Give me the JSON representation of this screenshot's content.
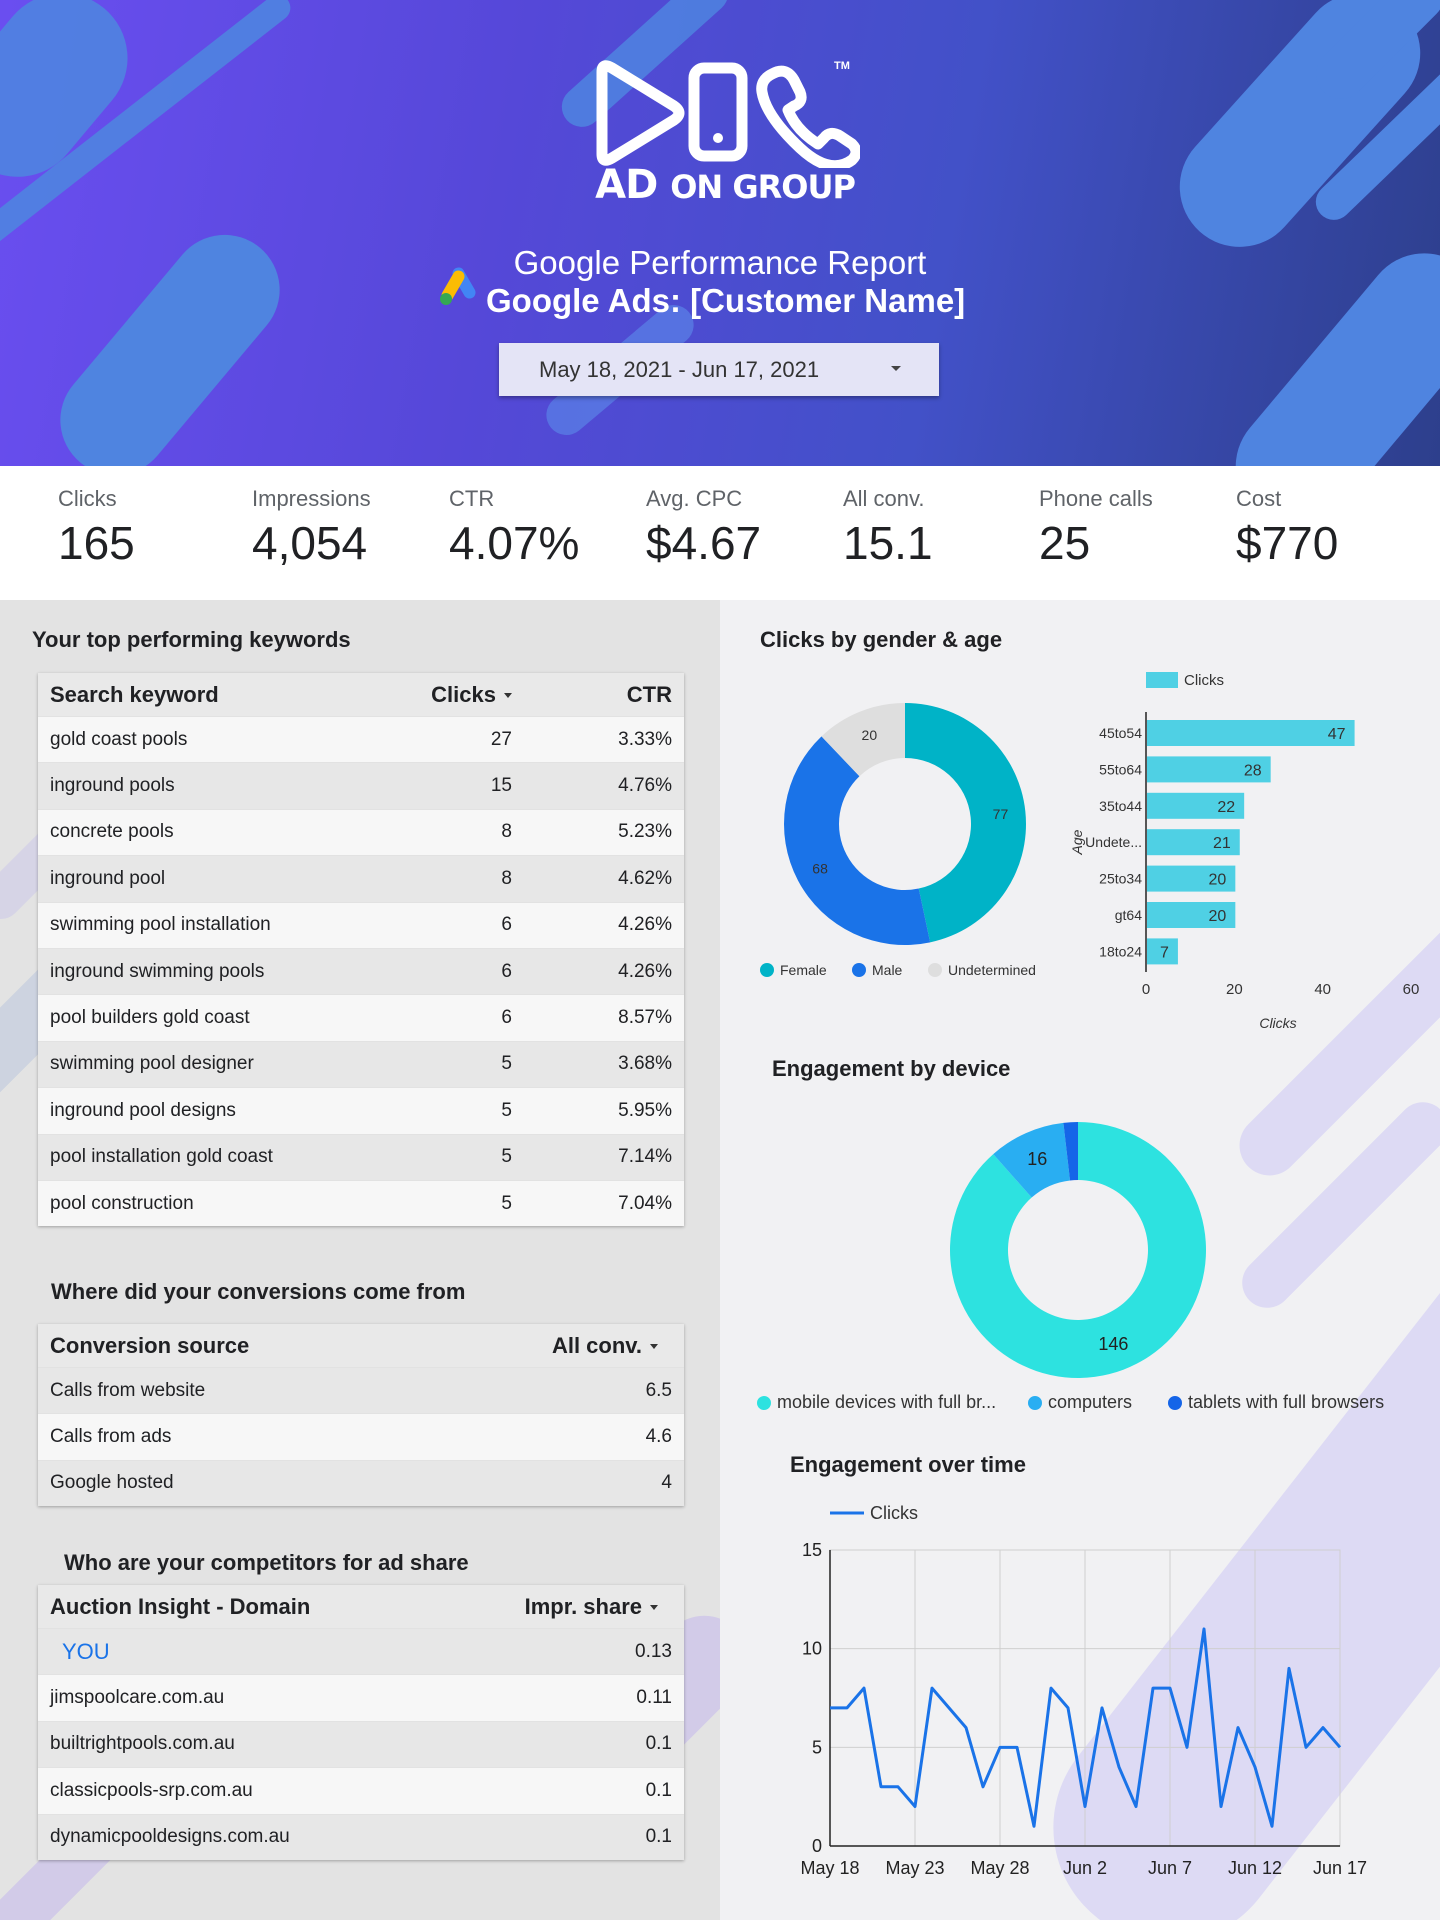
{
  "header": {
    "logo_text_main": "AD",
    "logo_text_small": "ON GROUP",
    "trademark": "TM",
    "report_title": "Google Performance Report",
    "report_subtitle": "Google Ads: [Customer Name]",
    "date_range": "May 18, 2021 - Jun 17, 2021",
    "colors": {
      "gradient_start": "#6a4ef0",
      "gradient_end": "#2d3f8c",
      "pill": "#4f84e0"
    }
  },
  "kpis": [
    {
      "label": "Clicks",
      "value": "165"
    },
    {
      "label": "Impressions",
      "value": "4,054"
    },
    {
      "label": "CTR",
      "value": "4.07%"
    },
    {
      "label": "Avg. CPC",
      "value": "$4.67"
    },
    {
      "label": "All conv.",
      "value": "15.1"
    },
    {
      "label": "Phone calls",
      "value": "25"
    },
    {
      "label": "Cost",
      "value": "$770"
    }
  ],
  "keywords": {
    "title": "Your top performing keywords",
    "headers": {
      "keyword": "Search keyword",
      "clicks": "Clicks",
      "ctr": "CTR"
    },
    "rows": [
      {
        "keyword": "gold coast pools",
        "clicks": "27",
        "ctr": "3.33%"
      },
      {
        "keyword": "inground pools",
        "clicks": "15",
        "ctr": "4.76%"
      },
      {
        "keyword": "concrete pools",
        "clicks": "8",
        "ctr": "5.23%"
      },
      {
        "keyword": "inground pool",
        "clicks": "8",
        "ctr": "4.62%"
      },
      {
        "keyword": "swimming pool installation",
        "clicks": "6",
        "ctr": "4.26%"
      },
      {
        "keyword": "inground swimming pools",
        "clicks": "6",
        "ctr": "4.26%"
      },
      {
        "keyword": "pool builders gold coast",
        "clicks": "6",
        "ctr": "8.57%"
      },
      {
        "keyword": "swimming pool designer",
        "clicks": "5",
        "ctr": "3.68%"
      },
      {
        "keyword": "inground pool designs",
        "clicks": "5",
        "ctr": "5.95%"
      },
      {
        "keyword": "pool installation gold coast",
        "clicks": "5",
        "ctr": "7.14%"
      },
      {
        "keyword": "pool construction",
        "clicks": "5",
        "ctr": "7.04%"
      }
    ]
  },
  "conversions": {
    "title": "Where did your conversions come from",
    "headers": {
      "source": "Conversion source",
      "value": "All conv."
    },
    "rows": [
      {
        "source": "Calls from website",
        "value": "6.5"
      },
      {
        "source": "Calls from ads",
        "value": "4.6"
      },
      {
        "source": "Google hosted",
        "value": "4"
      }
    ]
  },
  "competitors": {
    "title": "Who are your competitors for ad share",
    "headers": {
      "domain": "Auction Insight - Domain",
      "share": "Impr. share"
    },
    "rows": [
      {
        "domain": "YOU",
        "share": "0.13"
      },
      {
        "domain": "jimspoolcare.com.au",
        "share": "0.11"
      },
      {
        "domain": "builtrightpools.com.au",
        "share": "0.1"
      },
      {
        "domain": "classicpools-srp.com.au",
        "share": "0.1"
      },
      {
        "domain": "dynamicpooldesigns.com.au",
        "share": "0.1"
      }
    ]
  },
  "chart_data": [
    {
      "type": "pie",
      "title": "Clicks by gender & age",
      "labels": [
        "Female",
        "Male",
        "Undetermined"
      ],
      "values": [
        77,
        68,
        20
      ],
      "colors": [
        "#00b3c7",
        "#1a73e8",
        "#dedede"
      ],
      "legend": "bottom"
    },
    {
      "type": "bar",
      "orientation": "horizontal",
      "categories": [
        "45to54",
        "55to64",
        "35to44",
        "Undete...",
        "25to34",
        "gt64",
        "18to24"
      ],
      "series": [
        {
          "name": "Clicks",
          "values": [
            47,
            28,
            22,
            21,
            20,
            20,
            7
          ]
        }
      ],
      "xlabel": "Clicks",
      "ylabel": "Age",
      "xlim": [
        0,
        60
      ],
      "xticks": [
        "0",
        "20",
        "40",
        "60"
      ],
      "color": "#4fd0e4",
      "legend": "top"
    },
    {
      "type": "pie",
      "title": "Engagement by device",
      "labels": [
        "mobile devices with full br...",
        "computers",
        "tablets with full browsers"
      ],
      "values": [
        146,
        16,
        3
      ],
      "colors": [
        "#2de2e0",
        "#29aef2",
        "#1565e8"
      ],
      "legend": "bottom"
    },
    {
      "type": "line",
      "title": "Engagement over time",
      "series": [
        {
          "name": "Clicks",
          "values": [
            7,
            7,
            8,
            3,
            3,
            2,
            8,
            7,
            6,
            3,
            5,
            5,
            1,
            8,
            7,
            2,
            7,
            4,
            2,
            8,
            8,
            5,
            11,
            2,
            6,
            4,
            1,
            9,
            5,
            6,
            5
          ]
        }
      ],
      "x_tick_labels": [
        "May 18",
        "May 23",
        "May 28",
        "Jun 2",
        "Jun 7",
        "Jun 12",
        "Jun 17"
      ],
      "ylim": [
        0,
        15
      ],
      "yticks": [
        "0",
        "5",
        "10",
        "15"
      ],
      "color": "#1a73e8",
      "grid": true,
      "legend": "top"
    }
  ]
}
